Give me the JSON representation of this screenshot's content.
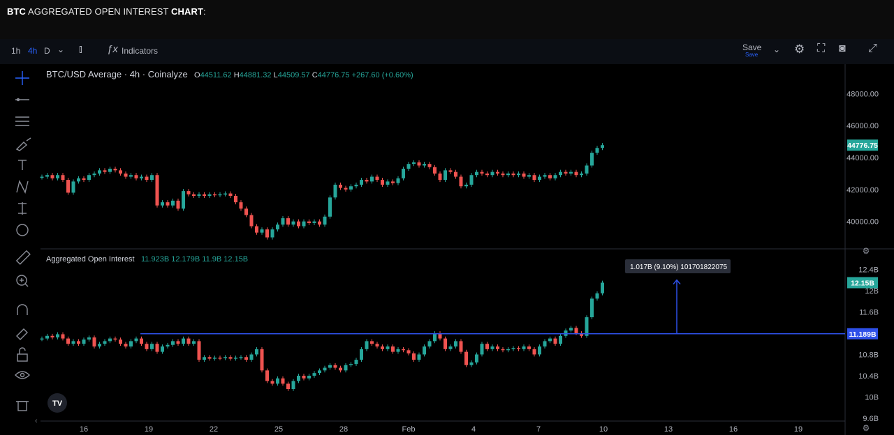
{
  "headline": {
    "ticker": "BTC",
    "middle": " AGGREGATED OPEN INTEREST ",
    "bold": "CHART",
    "suffix": ":"
  },
  "toolbar": {
    "intervals": [
      "1h",
      "4h",
      "D"
    ],
    "active_interval": "4h",
    "indicators_label": "Indicators",
    "save_label": "Save",
    "save_sub": "Save"
  },
  "colors": {
    "up": "#26a69a",
    "down": "#ef5350",
    "accent": "#2962ff",
    "hline": "#2e50e8"
  },
  "chart_data": [
    {
      "type": "candlestick",
      "title": "BTC/USD Average · 4h · Coinalyze",
      "ohlc_readout": {
        "O": "44511.62",
        "H": "44881.32",
        "L": "44509.57",
        "C": "44776.75",
        "change": "+267.60 (+0.60%)"
      },
      "y_ticks": [
        "48000.00",
        "46000.00",
        "44000.00",
        "42000.00",
        "40000.00"
      ],
      "ylim": [
        38500,
        49500
      ],
      "last_price_label": "44776.75",
      "close_series": [
        [
          0,
          42800
        ],
        [
          1,
          42900
        ],
        [
          2,
          42700
        ],
        [
          3,
          42900
        ],
        [
          4,
          42600
        ],
        [
          5,
          41800
        ],
        [
          6,
          42500
        ],
        [
          7,
          42700
        ],
        [
          8,
          42600
        ],
        [
          9,
          42900
        ],
        [
          10,
          43000
        ],
        [
          11,
          43200
        ],
        [
          12,
          43100
        ],
        [
          13,
          43300
        ],
        [
          14,
          43200
        ],
        [
          15,
          43000
        ],
        [
          16,
          42800
        ],
        [
          17,
          42900
        ],
        [
          18,
          42700
        ],
        [
          19,
          42800
        ],
        [
          20,
          42600
        ],
        [
          21,
          42900
        ],
        [
          22,
          41000
        ],
        [
          23,
          41200
        ],
        [
          24,
          41000
        ],
        [
          25,
          41300
        ],
        [
          26,
          40800
        ],
        [
          27,
          41900
        ],
        [
          28,
          41700
        ],
        [
          29,
          41600
        ],
        [
          30,
          41700
        ],
        [
          31,
          41600
        ],
        [
          32,
          41700
        ],
        [
          33,
          41650
        ],
        [
          34,
          41700
        ],
        [
          35,
          41750
        ],
        [
          36,
          41600
        ],
        [
          37,
          41200
        ],
        [
          38,
          40800
        ],
        [
          39,
          40400
        ],
        [
          40,
          39700
        ],
        [
          41,
          39300
        ],
        [
          42,
          39500
        ],
        [
          43,
          39000
        ],
        [
          44,
          39500
        ],
        [
          45,
          39800
        ],
        [
          46,
          40200
        ],
        [
          47,
          39800
        ],
        [
          48,
          40000
        ],
        [
          49,
          39700
        ],
        [
          50,
          40000
        ],
        [
          51,
          39900
        ],
        [
          52,
          40000
        ],
        [
          53,
          39800
        ],
        [
          54,
          40300
        ],
        [
          55,
          41500
        ],
        [
          56,
          42300
        ],
        [
          57,
          42100
        ],
        [
          58,
          42000
        ],
        [
          59,
          42200
        ],
        [
          60,
          42300
        ],
        [
          61,
          42600
        ],
        [
          62,
          42500
        ],
        [
          63,
          42800
        ],
        [
          64,
          42600
        ],
        [
          65,
          42300
        ],
        [
          66,
          42500
        ],
        [
          67,
          42400
        ],
        [
          68,
          42700
        ],
        [
          69,
          43300
        ],
        [
          70,
          43600
        ],
        [
          71,
          43700
        ],
        [
          72,
          43500
        ],
        [
          73,
          43600
        ],
        [
          74,
          43400
        ],
        [
          75,
          43000
        ],
        [
          76,
          42600
        ],
        [
          77,
          43200
        ],
        [
          78,
          43100
        ],
        [
          79,
          42800
        ],
        [
          80,
          42200
        ],
        [
          81,
          42300
        ],
        [
          82,
          42900
        ],
        [
          83,
          43100
        ],
        [
          84,
          43000
        ],
        [
          85,
          42900
        ],
        [
          86,
          43100
        ],
        [
          87,
          43000
        ],
        [
          88,
          42900
        ],
        [
          89,
          43000
        ],
        [
          90,
          42900
        ],
        [
          91,
          43000
        ],
        [
          92,
          42800
        ],
        [
          93,
          42900
        ],
        [
          94,
          42600
        ],
        [
          95,
          42800
        ],
        [
          96,
          42900
        ],
        [
          97,
          42700
        ],
        [
          98,
          42900
        ],
        [
          99,
          43100
        ],
        [
          100,
          43000
        ],
        [
          101,
          43100
        ],
        [
          102,
          42900
        ],
        [
          103,
          43000
        ],
        [
          104,
          43500
        ],
        [
          105,
          44300
        ],
        [
          106,
          44600
        ],
        [
          107,
          44776.75
        ]
      ]
    },
    {
      "type": "candlestick",
      "title": "Aggregated Open Interest",
      "ohlc_readout": {
        "O": "11.923B",
        "H": "12.179B",
        "L": "11.9B",
        "C": "12.15B"
      },
      "y_ticks": [
        "12.4B",
        "12B",
        "11.6B",
        "10.8B",
        "10.4B",
        "10B",
        "9.6B"
      ],
      "ylim": [
        9.6,
        12.72
      ],
      "last_value_label": "12.15B",
      "hline_label": "11.189B",
      "hline_value": 11.189,
      "measure_label": "1.017B (9.10%) 101701822075",
      "x_ticks": [
        "16",
        "19",
        "22",
        "25",
        "28",
        "Feb",
        "4",
        "7",
        "10",
        "13",
        "16",
        "19"
      ],
      "close_series": [
        [
          0,
          11.1
        ],
        [
          1,
          11.15
        ],
        [
          2,
          11.12
        ],
        [
          3,
          11.18
        ],
        [
          4,
          11.1
        ],
        [
          5,
          11.0
        ],
        [
          6,
          11.05
        ],
        [
          7,
          11.0
        ],
        [
          8,
          11.08
        ],
        [
          9,
          11.12
        ],
        [
          10,
          10.95
        ],
        [
          11,
          11.0
        ],
        [
          12,
          11.05
        ],
        [
          13,
          11.1
        ],
        [
          14,
          11.08
        ],
        [
          15,
          11.0
        ],
        [
          16,
          10.95
        ],
        [
          17,
          11.05
        ],
        [
          18,
          11.1
        ],
        [
          19,
          11.0
        ],
        [
          20,
          10.9
        ],
        [
          21,
          11.0
        ],
        [
          22,
          10.85
        ],
        [
          23,
          10.95
        ],
        [
          24,
          10.98
        ],
        [
          25,
          11.05
        ],
        [
          26,
          11.0
        ],
        [
          27,
          11.1
        ],
        [
          28,
          11.0
        ],
        [
          29,
          11.05
        ],
        [
          30,
          10.7
        ],
        [
          31,
          10.75
        ],
        [
          32,
          10.72
        ],
        [
          33,
          10.74
        ],
        [
          34,
          10.73
        ],
        [
          35,
          10.75
        ],
        [
          36,
          10.72
        ],
        [
          37,
          10.74
        ],
        [
          38,
          10.75
        ],
        [
          39,
          10.7
        ],
        [
          40,
          10.8
        ],
        [
          41,
          10.9
        ],
        [
          42,
          10.5
        ],
        [
          43,
          10.3
        ],
        [
          44,
          10.25
        ],
        [
          45,
          10.35
        ],
        [
          46,
          10.25
        ],
        [
          47,
          10.15
        ],
        [
          48,
          10.3
        ],
        [
          49,
          10.4
        ],
        [
          50,
          10.35
        ],
        [
          51,
          10.4
        ],
        [
          52,
          10.45
        ],
        [
          53,
          10.5
        ],
        [
          54,
          10.55
        ],
        [
          55,
          10.6
        ],
        [
          56,
          10.55
        ],
        [
          57,
          10.5
        ],
        [
          58,
          10.6
        ],
        [
          59,
          10.62
        ],
        [
          60,
          10.7
        ],
        [
          61,
          10.9
        ],
        [
          62,
          11.05
        ],
        [
          63,
          11.0
        ],
        [
          64,
          10.95
        ],
        [
          65,
          10.9
        ],
        [
          66,
          10.95
        ],
        [
          67,
          10.85
        ],
        [
          68,
          10.9
        ],
        [
          69,
          10.88
        ],
        [
          70,
          10.82
        ],
        [
          71,
          10.7
        ],
        [
          72,
          10.8
        ],
        [
          73,
          10.95
        ],
        [
          74,
          11.05
        ],
        [
          75,
          11.2
        ],
        [
          76,
          11.1
        ],
        [
          77,
          10.9
        ],
        [
          78,
          10.95
        ],
        [
          79,
          11.05
        ],
        [
          80,
          10.85
        ],
        [
          81,
          10.6
        ],
        [
          82,
          10.65
        ],
        [
          83,
          10.8
        ],
        [
          84,
          11.0
        ],
        [
          85,
          10.9
        ],
        [
          86,
          10.95
        ],
        [
          87,
          10.9
        ],
        [
          88,
          10.88
        ],
        [
          89,
          10.9
        ],
        [
          90,
          10.92
        ],
        [
          91,
          10.9
        ],
        [
          92,
          10.95
        ],
        [
          93,
          10.9
        ],
        [
          94,
          10.8
        ],
        [
          95,
          10.95
        ],
        [
          96,
          11.05
        ],
        [
          97,
          11.1
        ],
        [
          98,
          11.0
        ],
        [
          99,
          11.15
        ],
        [
          100,
          11.25
        ],
        [
          101,
          11.3
        ],
        [
          102,
          11.2
        ],
        [
          103,
          11.15
        ],
        [
          104,
          11.5
        ],
        [
          105,
          11.85
        ],
        [
          106,
          11.95
        ],
        [
          107,
          12.15
        ]
      ]
    }
  ]
}
